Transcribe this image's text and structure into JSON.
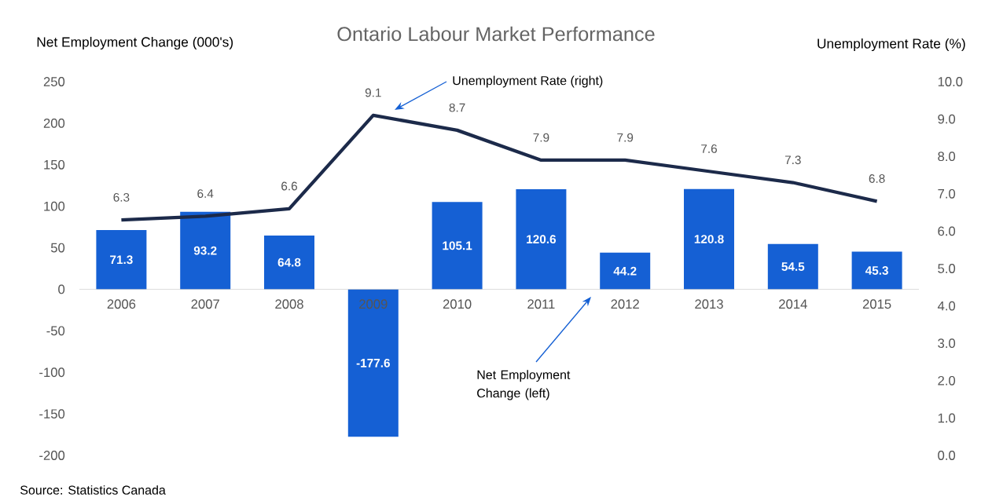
{
  "chart_data": {
    "type": "bar",
    "title": "Ontario Labour Market Performance",
    "ylabel": "Net Employment Change (000's)",
    "y2label": "Unemployment Rate (%)",
    "categories": [
      "2006",
      "2007",
      "2008",
      "2009",
      "2010",
      "2011",
      "2012",
      "2013",
      "2014",
      "2015"
    ],
    "series": [
      {
        "color": "#1560d4",
        "values": [
          71.3,
          93.2,
          64.8,
          -177.6,
          105.1,
          120.6,
          44.2,
          120.8,
          54.5,
          45.3
        ]
      },
      {
        "type": "line",
        "axis": "y2",
        "color": "#1c2a4a",
        "values": [
          6.3,
          6.4,
          6.6,
          9.1,
          8.7,
          7.9,
          7.9,
          7.6,
          7.3,
          6.8
        ]
      }
    ],
    "ylim": [
      -200,
      250
    ],
    "yticks": [
      -200,
      -150,
      -100,
      -50,
      0,
      50,
      100,
      150,
      200,
      250
    ],
    "y2lim": [
      0,
      10
    ],
    "y2ticks": [
      {
        "value": 0,
        "label": "0.0"
      },
      {
        "value": 1,
        "label": "1.0"
      },
      {
        "value": 2,
        "label": "2.0"
      },
      {
        "value": 3,
        "label": "3.0"
      },
      {
        "value": 4,
        "label": "4.0"
      },
      {
        "value": 5,
        "label": "5.0"
      },
      {
        "value": 6,
        "label": "6.0"
      },
      {
        "value": 7,
        "label": "7.0"
      },
      {
        "value": 8,
        "label": "8.0"
      },
      {
        "value": 9,
        "label": "9.0"
      },
      {
        "value": 10,
        "label": "10.0"
      }
    ],
    "data_labels": true,
    "annotations": [
      "Unemployment Rate (right)",
      "Net Employment Change (left)",
      "Source: Statistics Canada"
    ]
  }
}
